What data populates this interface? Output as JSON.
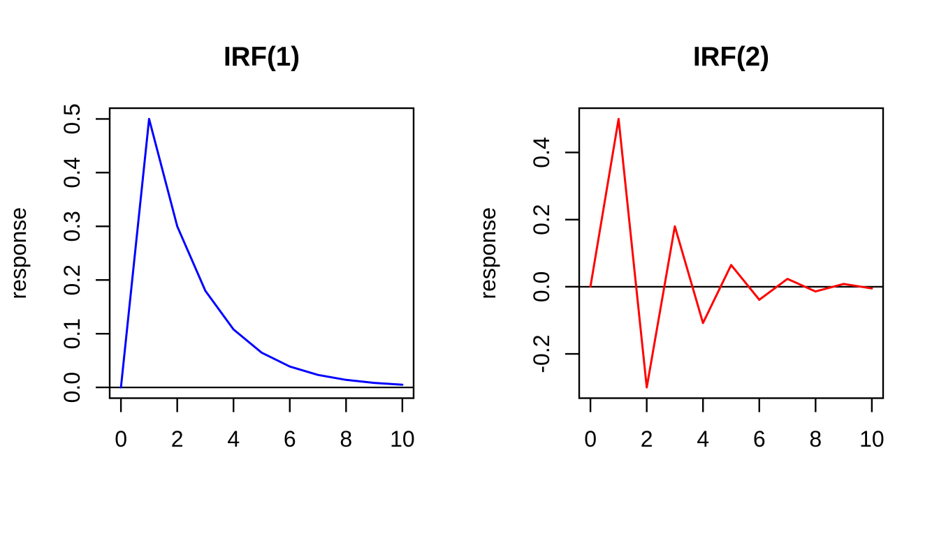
{
  "figure": {
    "background": "#ffffff",
    "text_color": "#000000",
    "axis_color": "#000000"
  },
  "chart_data": [
    {
      "type": "line",
      "title": "IRF(1)",
      "xlabel": "",
      "ylabel": "response",
      "line_color": "#0000ff",
      "zero_line": true,
      "grid": false,
      "legend": "none",
      "x": [
        0,
        1,
        2,
        3,
        4,
        5,
        6,
        7,
        8,
        9,
        10
      ],
      "y": [
        0,
        0.5,
        0.3,
        0.18,
        0.108,
        0.0648,
        0.03888,
        0.02333,
        0.014,
        0.0084,
        0.00504
      ],
      "xlim": [
        0,
        10
      ],
      "ylim": [
        0,
        0.5
      ],
      "x_ticks": [
        0,
        2,
        4,
        6,
        8,
        10
      ],
      "x_tick_labels": [
        "0",
        "2",
        "4",
        "6",
        "8",
        "10"
      ],
      "y_ticks": [
        0,
        0.1,
        0.2,
        0.3,
        0.4,
        0.5
      ],
      "y_tick_labels": [
        "0.0",
        "0.1",
        "0.2",
        "0.3",
        "0.4",
        "0.5"
      ]
    },
    {
      "type": "line",
      "title": "IRF(2)",
      "xlabel": "",
      "ylabel": "response",
      "line_color": "#ff0000",
      "zero_line": true,
      "grid": false,
      "legend": "none",
      "x": [
        0,
        1,
        2,
        3,
        4,
        5,
        6,
        7,
        8,
        9,
        10
      ],
      "y": [
        0,
        0.5,
        -0.3,
        0.18,
        -0.108,
        0.0648,
        -0.03888,
        0.02333,
        -0.014,
        0.0084,
        -0.00504
      ],
      "xlim": [
        0,
        10
      ],
      "ylim": [
        -0.3,
        0.5
      ],
      "x_ticks": [
        0,
        2,
        4,
        6,
        8,
        10
      ],
      "x_tick_labels": [
        "0",
        "2",
        "4",
        "6",
        "8",
        "10"
      ],
      "y_ticks": [
        -0.2,
        0,
        0.2,
        0.4
      ],
      "y_tick_labels": [
        "-0.2",
        "0.0",
        "0.2",
        "0.4"
      ]
    }
  ]
}
